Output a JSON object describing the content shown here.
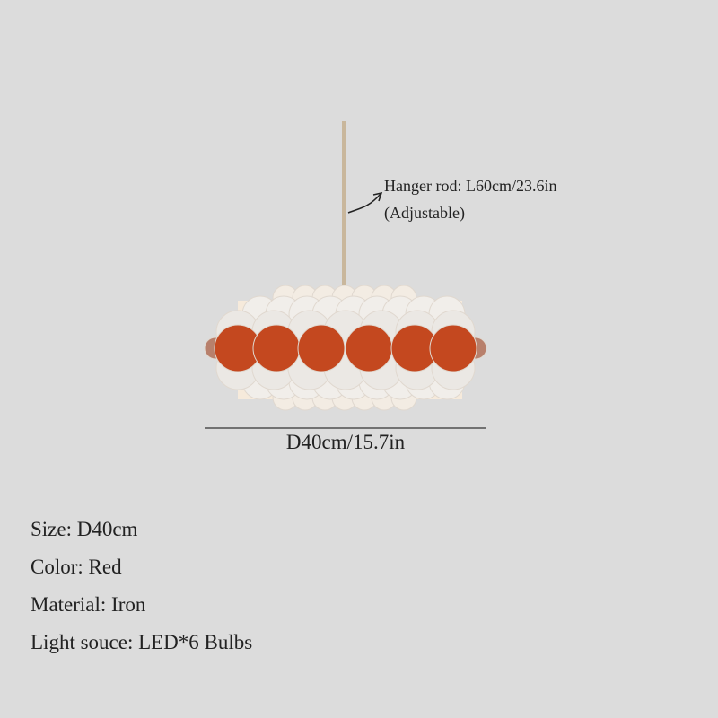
{
  "hanger_note": {
    "line1": "Hanger rod: L60cm/23.6in",
    "line2": "(Adjustable)"
  },
  "dimension_label": "D40cm/15.7in",
  "specs": [
    "Size: D40cm",
    "Color: Red",
    "Material: Iron",
    "Light souce: LED*6 Bulbs"
  ],
  "colors": {
    "background": "#dcdcdc",
    "disc_red": "#c4481f",
    "disc_white": "#f1eeea",
    "rod": "#c9b79c"
  }
}
